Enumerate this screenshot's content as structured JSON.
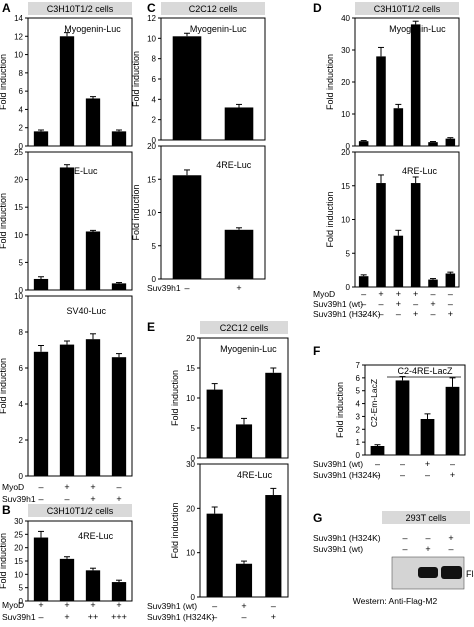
{
  "colors": {
    "bar": "#000000",
    "frame": "#000000",
    "header_bg": "#d9d9d9",
    "blot_bg": "#d4d4d4",
    "blot_band": "#111111"
  },
  "symbols": {
    "minus": "–",
    "plus": "+"
  },
  "panels": {
    "A": {
      "letter": "A",
      "header": "C3H10T1/2 cells",
      "rows": [
        "MyoD",
        "Suv39h1"
      ]
    },
    "B": {
      "letter": "B",
      "header": "C3H10T1/2 cells",
      "rows": [
        "MyoD",
        "Suv39h1"
      ]
    },
    "C": {
      "letter": "C",
      "header": "C2C12 cells",
      "rows": [
        "Suv39h1"
      ]
    },
    "D": {
      "letter": "D",
      "header": "C3H10T1/2 cells",
      "rows": [
        "MyoD",
        "Suv39h1 (wt)",
        "Suv39h1 (H324K)"
      ]
    },
    "E": {
      "letter": "E",
      "header": "C2C12 cells",
      "rows": [
        "Suv39h1 (wt)",
        "Suv39h1 (H324K)"
      ]
    },
    "F": {
      "letter": "F",
      "rows": [
        "Suv39h1 (wt)",
        "Suv39h1 (H324K)"
      ]
    },
    "G": {
      "letter": "G",
      "header": "293T cells",
      "rows": [
        "Suv39h1 (H324K)",
        "Suv39h1 (wt)"
      ],
      "band_label": "Flag",
      "caption": "Western: Anti-Flag-M2"
    }
  },
  "chart_data": [
    {
      "id": "A1",
      "panel": "A",
      "type": "bar",
      "title": "Myogenin-Luc",
      "ylabel": "Fold induction",
      "ylim": [
        0,
        14
      ],
      "ticks": [
        0,
        2,
        4,
        6,
        8,
        10,
        12,
        14
      ],
      "values": [
        1.6,
        12.0,
        5.2,
        1.6
      ],
      "errors": [
        0.15,
        0.4,
        0.2,
        0.15
      ]
    },
    {
      "id": "A2",
      "panel": "A",
      "type": "bar",
      "title": "4RE-Luc",
      "ylabel": "Fold induction",
      "ylim": [
        0,
        25
      ],
      "ticks": [
        0,
        5,
        10,
        15,
        20,
        25
      ],
      "values": [
        2.0,
        22.2,
        10.6,
        1.2
      ],
      "errors": [
        0.4,
        0.5,
        0.2,
        0.15
      ]
    },
    {
      "id": "A3",
      "panel": "A",
      "type": "bar",
      "title": "SV40-Luc",
      "ylabel": "Fold induction",
      "ylim": [
        0,
        10
      ],
      "ticks": [
        0,
        2,
        4,
        6,
        8,
        10
      ],
      "values": [
        6.9,
        7.3,
        7.6,
        6.6
      ],
      "errors": [
        0.35,
        0.2,
        0.3,
        0.2
      ],
      "conditions": [
        [
          "–",
          "+",
          "+",
          "–"
        ],
        [
          "–",
          "–",
          "+",
          "+"
        ]
      ]
    },
    {
      "id": "B1",
      "panel": "B",
      "type": "bar",
      "title": "4RE-Luc",
      "ylabel": "Fold induction",
      "ylim": [
        0,
        30
      ],
      "ticks": [
        0,
        5,
        10,
        15,
        20,
        25,
        30
      ],
      "values": [
        23.8,
        15.8,
        11.5,
        7.1
      ],
      "errors": [
        2.3,
        0.8,
        0.8,
        0.7
      ],
      "conditions": [
        [
          "+",
          "+",
          "+",
          "+"
        ],
        [
          "–",
          "+",
          "++",
          "+++"
        ]
      ]
    },
    {
      "id": "C1",
      "panel": "C",
      "type": "bar",
      "title": "Myogenin-Luc",
      "ylabel": "Fold induction",
      "ylim": [
        0,
        12
      ],
      "ticks": [
        0,
        2,
        4,
        6,
        8,
        10,
        12
      ],
      "values": [
        10.2,
        3.2
      ],
      "errors": [
        0.3,
        0.3
      ]
    },
    {
      "id": "C2",
      "panel": "C",
      "type": "bar",
      "title": "4RE-Luc",
      "ylabel": "Fold induction",
      "ylim": [
        0,
        20
      ],
      "ticks": [
        0,
        5,
        10,
        15,
        20
      ],
      "values": [
        15.6,
        7.4
      ],
      "errors": [
        0.8,
        0.3
      ],
      "conditions": [
        [
          "–",
          "+"
        ]
      ]
    },
    {
      "id": "D1",
      "panel": "D",
      "type": "bar",
      "title": "Myogenin-Luc",
      "ylabel": "Fold induction",
      "ylim": [
        0,
        40
      ],
      "ticks": [
        0,
        10,
        20,
        30,
        40
      ],
      "values": [
        1.5,
        28.0,
        11.8,
        38.0,
        1.2,
        2.3
      ],
      "errors": [
        0.2,
        2.8,
        1.2,
        1.0,
        0.2,
        0.3
      ]
    },
    {
      "id": "D2",
      "panel": "D",
      "type": "bar",
      "title": "4RE-Luc",
      "ylabel": "Fold induction",
      "ylim": [
        0,
        20
      ],
      "ticks": [
        0,
        5,
        10,
        15,
        20
      ],
      "values": [
        1.6,
        15.4,
        7.6,
        15.4,
        1.1,
        2.0
      ],
      "errors": [
        0.2,
        1.2,
        0.8,
        0.9,
        0.15,
        0.2
      ],
      "conditions": [
        [
          "–",
          "+",
          "+",
          "+",
          "–",
          "–"
        ],
        [
          "–",
          "–",
          "+",
          "–",
          "+",
          "–"
        ],
        [
          "–",
          "–",
          "–",
          "+",
          "–",
          "+"
        ]
      ]
    },
    {
      "id": "E1",
      "panel": "E",
      "type": "bar",
      "title": "Myogenin-Luc",
      "ylabel": "Fold induction",
      "ylim": [
        0,
        20
      ],
      "ticks": [
        0,
        5,
        10,
        15,
        20
      ],
      "values": [
        11.4,
        5.6,
        14.2
      ],
      "errors": [
        1.0,
        1.0,
        0.8
      ]
    },
    {
      "id": "E2",
      "panel": "E",
      "type": "bar",
      "title": "4RE-Luc",
      "ylabel": "Fold induction",
      "ylim": [
        0,
        30
      ],
      "ticks": [
        0,
        10,
        20,
        30
      ],
      "values": [
        18.8,
        7.5,
        23.0
      ],
      "errors": [
        1.5,
        0.6,
        1.5
      ],
      "conditions": [
        [
          "–",
          "+",
          "–"
        ],
        [
          "–",
          "–",
          "+"
        ]
      ]
    },
    {
      "id": "F1",
      "panel": "F",
      "type": "bar",
      "title": "C2-4RE-LacZ",
      "ylabel": "Fold induction",
      "ylim": [
        0,
        7
      ],
      "ticks": [
        0,
        1,
        2,
        3,
        4,
        5,
        6,
        7
      ],
      "inner_label": "C2-Em-LacZ",
      "values": [
        0.7,
        5.8,
        2.8,
        5.3
      ],
      "errors": [
        0.1,
        0.3,
        0.4,
        0.7
      ],
      "conditions": [
        [
          "–",
          "–",
          "+",
          "–"
        ],
        [
          "–",
          "–",
          "–",
          "+"
        ]
      ]
    }
  ]
}
